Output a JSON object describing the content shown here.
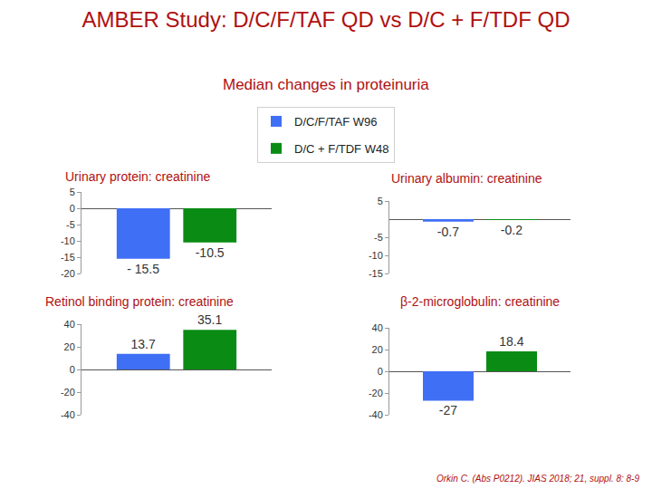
{
  "title": "AMBER Study: D/C/F/TAF QD vs D/C + F/TDF QD",
  "subtitle": "Median changes in proteinuria",
  "source": "Orkin C. (Abs P0212). JIAS 2018; 21, suppl. 8: 8-9",
  "chart_data": [
    {
      "type": "bar",
      "title": "Urinary protein: creatinine",
      "categories": [
        null
      ],
      "series": [
        {
          "name": "D/C/F/TAF W96",
          "color": "#3f6ff5",
          "values": [
            -15.5
          ],
          "value_labels": [
            "- 15.5"
          ]
        },
        {
          "name": "D/C + F/TDF W48",
          "color": "#0a8c14",
          "values": [
            -10.5
          ]
        }
      ],
      "ylim": [
        -20,
        5
      ],
      "yticks": [
        5,
        0,
        -5,
        -10,
        -15,
        -20
      ],
      "data_labels": true,
      "grid": false
    },
    {
      "type": "bar",
      "title": "Urinary albumin: creatinine",
      "categories": [
        null
      ],
      "series": [
        {
          "name": "D/C/F/TAF W96",
          "color": "#3f6ff5",
          "values": [
            -0.7
          ]
        },
        {
          "name": "D/C + F/TDF W48",
          "color": "#0a8c14",
          "values": [
            -0.2
          ]
        }
      ],
      "ylim": [
        -15,
        5
      ],
      "yticks": [
        5,
        -5,
        -10,
        -15
      ],
      "data_labels": true,
      "grid": false
    },
    {
      "type": "bar",
      "title": "Retinol binding protein: creatinine",
      "categories": [
        null
      ],
      "series": [
        {
          "name": "D/C/F/TAF W96",
          "color": "#3f6ff5",
          "values": [
            13.7
          ]
        },
        {
          "name": "D/C + F/TDF W48",
          "color": "#0a8c14",
          "values": [
            35.1
          ]
        }
      ],
      "ylim": [
        -40,
        40
      ],
      "yticks": [
        40,
        20,
        0,
        -20,
        -40
      ],
      "data_labels": true,
      "grid": false
    },
    {
      "type": "bar",
      "title": "β-2-microglobulin: creatinine",
      "categories": [
        null
      ],
      "series": [
        {
          "name": "D/C/F/TAF W96",
          "color": "#3f6ff5",
          "values": [
            -27
          ]
        },
        {
          "name": "D/C + F/TDF W48",
          "color": "#0a8c14",
          "values": [
            18.4
          ]
        }
      ],
      "ylim": [
        -40,
        40
      ],
      "yticks": [
        40,
        20,
        0,
        -20,
        -40
      ],
      "data_labels": true,
      "grid": false
    }
  ]
}
